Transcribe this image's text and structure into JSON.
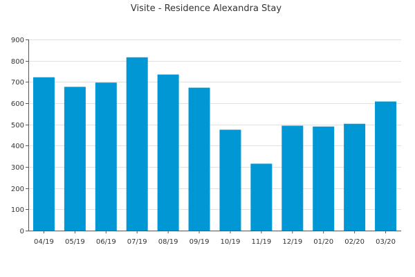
{
  "chart_data": {
    "type": "bar",
    "title": "Visite - Residence Alexandra Stay",
    "categories": [
      "04/19",
      "05/19",
      "06/19",
      "07/19",
      "08/19",
      "09/19",
      "10/19",
      "11/19",
      "12/19",
      "01/20",
      "02/20",
      "03/20"
    ],
    "values": [
      722,
      677,
      697,
      816,
      735,
      673,
      475,
      315,
      494,
      490,
      503,
      608
    ],
    "xlabel": "",
    "ylabel": "",
    "ylim": [
      0,
      900
    ],
    "yticks": [
      0,
      100,
      200,
      300,
      400,
      500,
      600,
      700,
      800,
      900
    ],
    "grid": true,
    "legend": "none",
    "bar_color": "#0097d4",
    "grid_color": "#e0e0e0",
    "axis_color": "#555555"
  }
}
